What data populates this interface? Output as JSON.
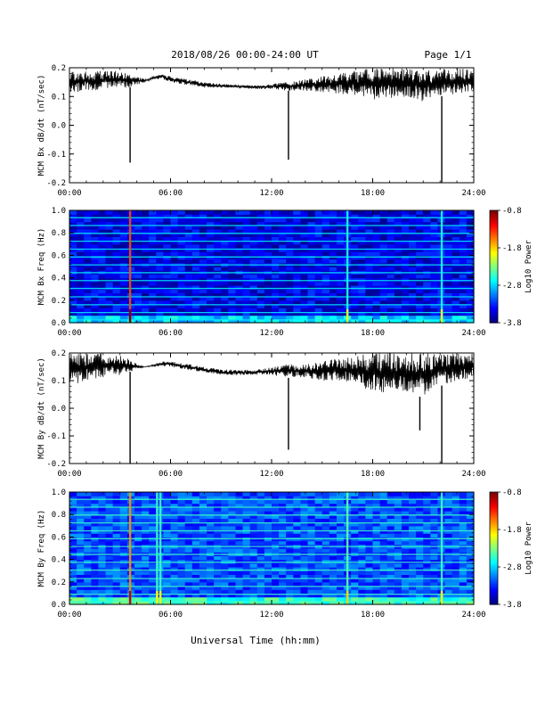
{
  "header": {
    "title": "2018/08/26  00:00-24:00 UT",
    "page": "Page 1/1"
  },
  "x_axis": {
    "label": "Universal Time (hh:mm)",
    "ticks": [
      "00:00",
      "06:00",
      "12:00",
      "18:00",
      "24:00"
    ],
    "tick_hours": [
      0,
      6,
      12,
      18,
      24
    ]
  },
  "colorbar": {
    "label": "Log10 Power",
    "ticks": [
      "-0.8",
      "-1.8",
      "-2.8",
      "-3.8"
    ],
    "tick_values": [
      -0.8,
      -1.8,
      -2.8,
      -3.8
    ],
    "range": [
      -3.8,
      -0.8
    ]
  },
  "chart_data": [
    {
      "type": "line",
      "ylabel": "MCM Bx dB/dt (nT/sec)",
      "ylim": [
        -0.2,
        0.2
      ],
      "yticks": [
        "0.2",
        "0.1",
        "0.0",
        "-0.1",
        "-0.2"
      ],
      "ytick_values": [
        0.2,
        0.1,
        0.0,
        -0.1,
        -0.2
      ],
      "envelope": {
        "x": [
          0,
          1,
          2,
          3,
          3.5,
          4,
          4.5,
          5,
          5.5,
          6,
          7,
          8,
          9,
          10,
          11,
          12,
          13,
          14,
          15,
          16,
          17,
          18,
          19,
          20,
          21,
          22,
          23,
          24
        ],
        "upper": [
          0.19,
          0.19,
          0.19,
          0.19,
          0.18,
          0.17,
          0.16,
          0.17,
          0.18,
          0.17,
          0.16,
          0.15,
          0.145,
          0.14,
          0.14,
          0.145,
          0.15,
          0.16,
          0.17,
          0.18,
          0.19,
          0.2,
          0.2,
          0.2,
          0.19,
          0.2,
          0.2,
          0.19
        ],
        "lower": [
          0.11,
          0.12,
          0.12,
          0.13,
          0.13,
          0.14,
          0.15,
          0.16,
          0.16,
          0.15,
          0.14,
          0.13,
          0.13,
          0.13,
          0.125,
          0.125,
          0.12,
          0.12,
          0.115,
          0.11,
          0.1,
          0.09,
          0.09,
          0.1,
          0.08,
          0.1,
          0.11,
          0.12
        ]
      },
      "spikes": [
        {
          "x": 3.6,
          "y": -0.13
        },
        {
          "x": 13.0,
          "y": -0.12
        },
        {
          "x": 22.1,
          "y": -0.2
        }
      ]
    },
    {
      "type": "heatmap",
      "ylabel": "MCM Bx Freq (Hz)",
      "ylim": [
        0.0,
        1.0
      ],
      "yticks": [
        "1.0",
        "0.8",
        "0.6",
        "0.4",
        "0.2",
        "0.0"
      ],
      "ytick_values": [
        1.0,
        0.8,
        0.6,
        0.4,
        0.2,
        0.0
      ],
      "background_log_power": -3.5,
      "harmonic_freqs_hz": [
        0.025,
        0.09,
        0.16,
        0.23,
        0.305,
        0.375,
        0.445,
        0.515,
        0.585,
        0.655,
        0.725,
        0.795,
        0.865,
        0.935
      ],
      "harmonic_log_power": -2.7,
      "bright_columns": [
        {
          "x": 3.6,
          "log_power": -1.4
        },
        {
          "x": 16.5,
          "log_power": -2.6
        },
        {
          "x": 22.1,
          "log_power": -2.6
        }
      ]
    },
    {
      "type": "line",
      "ylabel": "MCM By dB/dt (nT/sec)",
      "ylim": [
        -0.2,
        0.2
      ],
      "yticks": [
        "0.2",
        "0.1",
        "0.0",
        "-0.1",
        "-0.2"
      ],
      "ytick_values": [
        0.2,
        0.1,
        0.0,
        -0.1,
        -0.2
      ],
      "envelope": {
        "x": [
          0,
          1,
          2,
          3,
          3.5,
          4,
          4.5,
          5,
          5.5,
          6,
          7,
          8,
          9,
          10,
          11,
          12,
          13,
          14,
          15,
          16,
          17,
          18,
          19,
          20,
          21,
          22,
          23,
          24
        ],
        "upper": [
          0.2,
          0.2,
          0.2,
          0.19,
          0.18,
          0.16,
          0.15,
          0.16,
          0.17,
          0.17,
          0.16,
          0.15,
          0.14,
          0.14,
          0.14,
          0.15,
          0.16,
          0.16,
          0.17,
          0.18,
          0.19,
          0.2,
          0.2,
          0.2,
          0.2,
          0.2,
          0.2,
          0.2
        ],
        "lower": [
          0.08,
          0.1,
          0.11,
          0.12,
          0.13,
          0.14,
          0.15,
          0.15,
          0.15,
          0.15,
          0.14,
          0.13,
          0.12,
          0.12,
          0.12,
          0.12,
          0.11,
          0.11,
          0.1,
          0.1,
          0.08,
          0.06,
          0.05,
          0.05,
          0.04,
          0.08,
          0.1,
          0.11
        ]
      },
      "spikes": [
        {
          "x": 3.6,
          "y": -0.2
        },
        {
          "x": 13.0,
          "y": -0.15
        },
        {
          "x": 20.8,
          "y": -0.08
        },
        {
          "x": 22.1,
          "y": -0.2
        }
      ]
    },
    {
      "type": "heatmap",
      "ylabel": "MCM By Freq (Hz)",
      "ylim": [
        0.0,
        1.0
      ],
      "yticks": [
        "1.0",
        "0.8",
        "0.6",
        "0.4",
        "0.2",
        "0.0"
      ],
      "ytick_values": [
        1.0,
        0.8,
        0.6,
        0.4,
        0.2,
        0.0
      ],
      "background_log_power": -3.2,
      "harmonic_freqs_hz": [
        0.025,
        0.09,
        0.16,
        0.23,
        0.305,
        0.375,
        0.445,
        0.515,
        0.585,
        0.655,
        0.725,
        0.795,
        0.865,
        0.935
      ],
      "harmonic_log_power": -2.5,
      "bright_columns": [
        {
          "x": 3.6,
          "log_power": -1.6
        },
        {
          "x": 5.2,
          "log_power": -2.5
        },
        {
          "x": 5.4,
          "log_power": -2.5
        },
        {
          "x": 16.5,
          "log_power": -2.4
        },
        {
          "x": 22.1,
          "log_power": -2.5
        }
      ]
    }
  ]
}
